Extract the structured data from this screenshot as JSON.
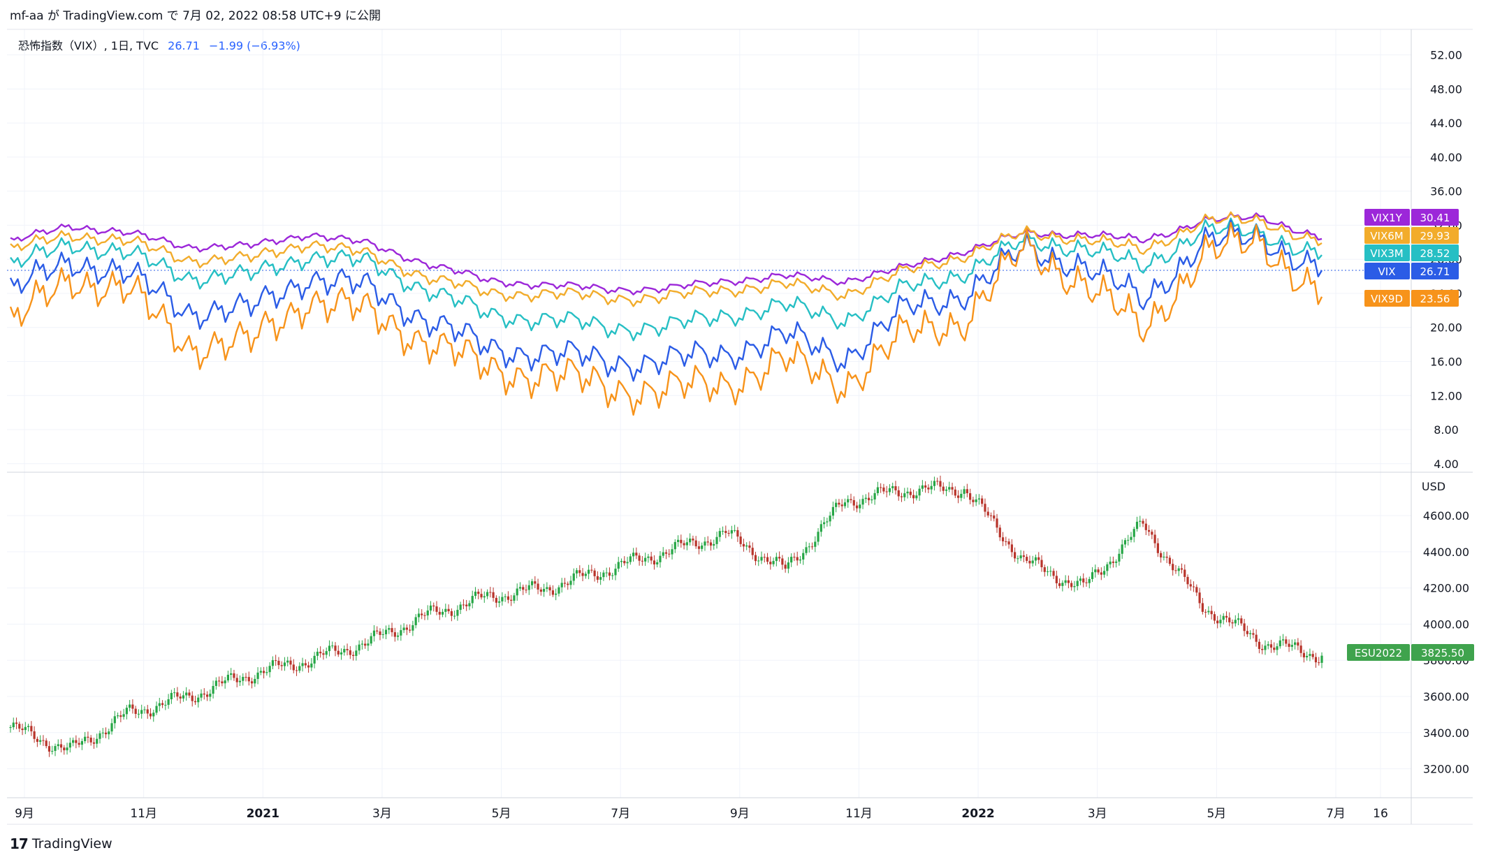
{
  "header": {
    "publish_text": "mf-aa が TradingView.com で 7月 02, 2022 08:58 UTC+9 に公開"
  },
  "legend": {
    "symbol_text": "恐怖指数（VIX）, 1日, TVC",
    "last": "26.71",
    "change": "−1.99 (−6.93%)"
  },
  "footer": {
    "brand": "TradingView",
    "logo_text": "17"
  },
  "colors": {
    "VIX1Y": "#9c27d9",
    "VIX6M": "#f2ac2b",
    "VIX3M": "#26bfc4",
    "VIX": "#2b5ce6",
    "VIX9D": "#f7931a",
    "up": "#26a646",
    "down": "#b8342b",
    "es_badge": "#3fa34d",
    "grid": "#f0f3fa",
    "axis_text": "#131722"
  },
  "chart_data": [
    {
      "type": "line",
      "title": "恐怖指数（VIX）, 1日, TVC",
      "ylim": [
        3,
        55
      ],
      "yticks": [
        "52.00",
        "48.00",
        "44.00",
        "40.00",
        "36.00",
        "32.00",
        "28.00",
        "24.00",
        "20.00",
        "16.00",
        "12.00",
        "8.00",
        "4.00"
      ],
      "x_labels": [
        "9月",
        "11月",
        "2021",
        "3月",
        "5月",
        "7月",
        "9月",
        "11月",
        "2022",
        "3月",
        "5月",
        "7月",
        "16"
      ],
      "x": [
        "2020-09",
        "2020-10",
        "2020-11",
        "2020-12",
        "2021-01",
        "2021-02",
        "2021-03",
        "2021-04",
        "2021-05",
        "2021-06",
        "2021-07",
        "2021-08",
        "2021-09",
        "2021-10",
        "2021-11",
        "2021-12",
        "2022-01",
        "2022-02",
        "2022-03",
        "2022-04",
        "2022-05",
        "2022-06",
        "2022-07"
      ],
      "series": [
        {
          "name": "VIX1Y",
          "last": "30.41",
          "values": [
            30,
            32,
            31,
            29.5,
            29.5,
            31,
            29.8,
            27.5,
            25.5,
            25,
            24.5,
            24.5,
            25.5,
            26,
            25.5,
            27,
            29,
            31,
            31,
            30.2,
            32.5,
            33,
            30.4
          ]
        },
        {
          "name": "VIX6M",
          "last": "29.93",
          "values": [
            29,
            31,
            30,
            28,
            28,
            30,
            28.5,
            26,
            24,
            24,
            23.5,
            23.5,
            24.5,
            25,
            24,
            26.5,
            28.5,
            31,
            30.5,
            29,
            32.5,
            32.5,
            29.9
          ]
        },
        {
          "name": "VIX3M",
          "last": "28.52",
          "values": [
            27,
            30,
            28.5,
            26,
            26,
            28.5,
            27.5,
            24.5,
            21.5,
            21,
            20,
            20,
            21.5,
            22.5,
            21,
            24.5,
            26.5,
            30,
            29.5,
            27,
            31.5,
            31,
            28.5
          ]
        },
        {
          "name": "VIX",
          "last": "26.71",
          "values": [
            24,
            28,
            26,
            22,
            22,
            26,
            24.5,
            21,
            17.5,
            17,
            16,
            16,
            17,
            19,
            16.5,
            22,
            24,
            29,
            27.5,
            23,
            30,
            30.5,
            26.7
          ]
        },
        {
          "name": "VIX9D",
          "last": "23.56",
          "values": [
            20,
            26,
            24,
            18,
            18,
            23.5,
            21.5,
            18.5,
            15,
            14.5,
            13,
            12.5,
            13.5,
            16,
            13.5,
            19,
            21,
            29,
            25.5,
            19.5,
            28.5,
            30,
            23.6
          ]
        }
      ]
    },
    {
      "type": "candlestick",
      "title": "ESU2022",
      "last": "3825.50",
      "unit": "USD",
      "ylim": [
        3040,
        4840
      ],
      "yticks": [
        "4600.00",
        "4400.00",
        "4200.00",
        "4000.00",
        "3800.00",
        "3600.00",
        "3400.00",
        "3200.00"
      ],
      "x": [
        "2020-09",
        "2020-10",
        "2020-11",
        "2020-12",
        "2021-01",
        "2021-02",
        "2021-03",
        "2021-04",
        "2021-05",
        "2021-06",
        "2021-07",
        "2021-08",
        "2021-09",
        "2021-10",
        "2021-11",
        "2021-12",
        "2022-01",
        "2022-02",
        "2022-03",
        "2022-04",
        "2022-05",
        "2022-06",
        "2022-07"
      ],
      "close": [
        3430,
        3300,
        3510,
        3600,
        3720,
        3800,
        3900,
        4050,
        4150,
        4200,
        4300,
        4400,
        4500,
        4300,
        4680,
        4740,
        4750,
        4350,
        4200,
        4550,
        4100,
        3900,
        3825.5
      ]
    }
  ]
}
